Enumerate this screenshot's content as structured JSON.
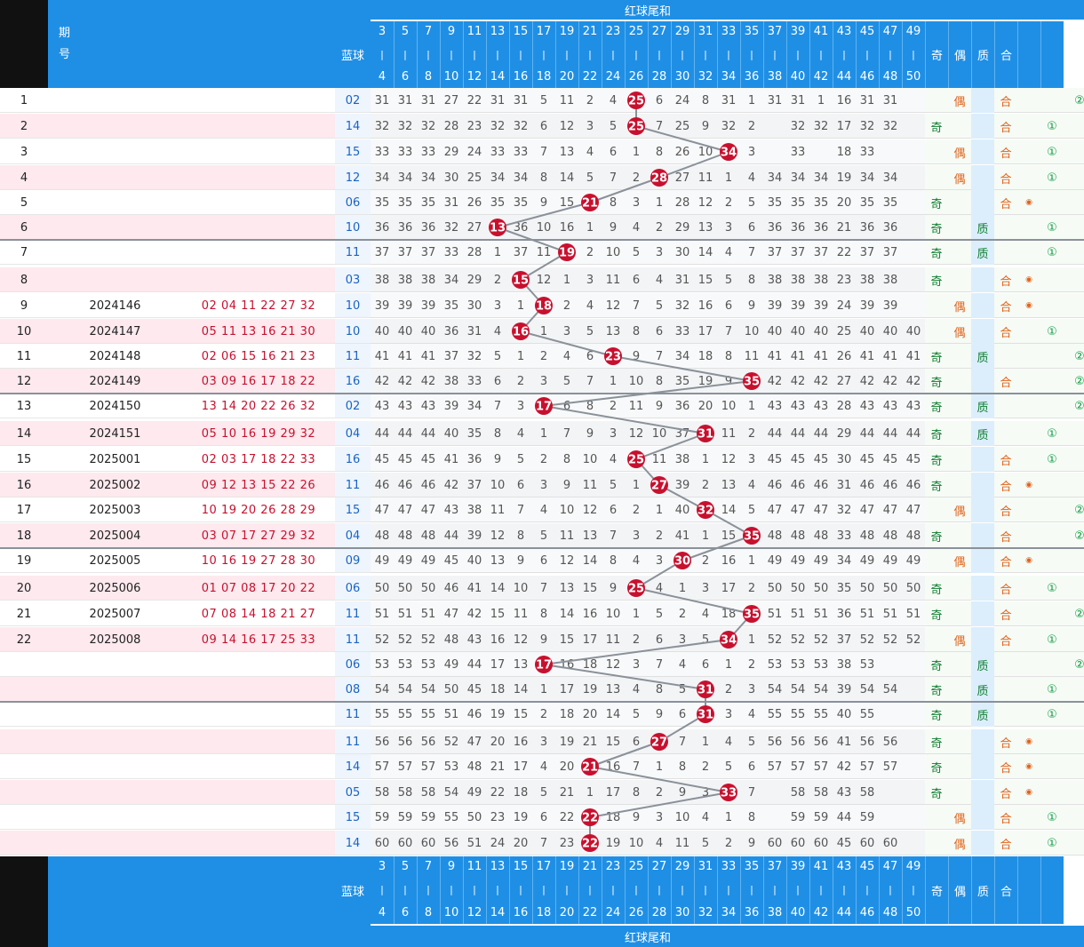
{
  "header": {
    "title": "红球尾和",
    "period_label": "期\n号",
    "blue_label": "蓝球",
    "col_pairs": [
      [
        "3",
        "4"
      ],
      [
        "5",
        "6"
      ],
      [
        "7",
        "8"
      ],
      [
        "9",
        "10"
      ],
      [
        "11",
        "12"
      ],
      [
        "13",
        "14"
      ],
      [
        "15",
        "16"
      ],
      [
        "17",
        "18"
      ],
      [
        "19",
        "20"
      ],
      [
        "21",
        "22"
      ],
      [
        "23",
        "24"
      ],
      [
        "25",
        "26"
      ],
      [
        "27",
        "28"
      ],
      [
        "29",
        "30"
      ],
      [
        "31",
        "32"
      ],
      [
        "33",
        "34"
      ],
      [
        "35",
        "36"
      ],
      [
        "37",
        "38"
      ],
      [
        "39",
        "40"
      ],
      [
        "41",
        "42"
      ],
      [
        "43",
        "44"
      ],
      [
        "45",
        "46"
      ],
      [
        "47",
        "48"
      ],
      [
        "49",
        "50"
      ]
    ],
    "attr_labels": [
      "奇",
      "偶",
      "质",
      "合",
      "",
      ""
    ]
  },
  "footer": {
    "title": "红球尾和",
    "blue_label": "蓝球",
    "col_pairs": [
      [
        "3",
        "4"
      ],
      [
        "5",
        "6"
      ],
      [
        "7",
        "8"
      ],
      [
        "9",
        "10"
      ],
      [
        "11",
        "12"
      ],
      [
        "13",
        "14"
      ],
      [
        "15",
        "16"
      ],
      [
        "17",
        "18"
      ],
      [
        "19",
        "20"
      ],
      [
        "21",
        "22"
      ],
      [
        "23",
        "24"
      ],
      [
        "25",
        "26"
      ],
      [
        "27",
        "28"
      ],
      [
        "29",
        "30"
      ],
      [
        "31",
        "32"
      ],
      [
        "33",
        "34"
      ],
      [
        "35",
        "36"
      ],
      [
        "37",
        "38"
      ],
      [
        "39",
        "40"
      ],
      [
        "41",
        "42"
      ],
      [
        "43",
        "44"
      ],
      [
        "45",
        "46"
      ],
      [
        "47",
        "48"
      ],
      [
        "49",
        "50"
      ]
    ],
    "attr_labels": [
      "奇",
      "偶",
      "质",
      "合",
      "",
      ""
    ]
  },
  "colors": {
    "header": "#1f8fe5",
    "hit_ball": "#c8102e",
    "line": "#8a9199",
    "odd": "#0e7d2e",
    "even": "#e0631a"
  },
  "rows": [
    {
      "idx": "1",
      "period": "",
      "reds": "",
      "blue": "02",
      "hit": 25,
      "odd": "",
      "even": "偶",
      "prime": "",
      "comp": "合",
      "mark": "②",
      "dot": false
    },
    {
      "idx": "2",
      "period": "",
      "reds": "",
      "blue": "14",
      "hit": 25,
      "odd": "奇",
      "even": "",
      "prime": "",
      "comp": "合",
      "mark": "①",
      "dot": false
    },
    {
      "idx": "3",
      "period": "",
      "reds": "",
      "blue": "15",
      "hit": 34,
      "odd": "",
      "even": "偶",
      "prime": "",
      "comp": "合",
      "mark": "①",
      "dot": false
    },
    {
      "idx": "4",
      "period": "",
      "reds": "",
      "blue": "12",
      "hit": 28,
      "odd": "",
      "even": "偶",
      "prime": "",
      "comp": "合",
      "mark": "①",
      "dot": false
    },
    {
      "idx": "5",
      "period": "",
      "reds": "",
      "blue": "06",
      "hit": 21,
      "odd": "奇",
      "even": "",
      "prime": "",
      "comp": "合",
      "mark": "",
      "dot": true
    },
    {
      "idx": "6",
      "period": "",
      "reds": "",
      "blue": "10",
      "hit": 13,
      "odd": "奇",
      "even": "",
      "prime": "质",
      "comp": "",
      "mark": "①",
      "dot": false
    },
    {
      "idx": "7",
      "period": "",
      "reds": "",
      "blue": "11",
      "hit": 19,
      "odd": "奇",
      "even": "",
      "prime": "质",
      "comp": "",
      "mark": "①",
      "dot": false
    },
    {
      "idx": "8",
      "period": "",
      "reds": "",
      "blue": "03",
      "hit": 15,
      "odd": "奇",
      "even": "",
      "prime": "",
      "comp": "合",
      "mark": "",
      "dot": true
    },
    {
      "idx": "9",
      "period": "2024146",
      "reds": "02 04 11 22 27 32",
      "blue": "10",
      "hit": 18,
      "odd": "",
      "even": "偶",
      "prime": "",
      "comp": "合",
      "mark": "",
      "dot": true
    },
    {
      "idx": "10",
      "period": "2024147",
      "reds": "05 11 13 16 21 30",
      "blue": "10",
      "hit": 16,
      "odd": "",
      "even": "偶",
      "prime": "",
      "comp": "合",
      "mark": "①",
      "dot": false
    },
    {
      "idx": "11",
      "period": "2024148",
      "reds": "02 06 15 16 21 23",
      "blue": "11",
      "hit": 23,
      "odd": "奇",
      "even": "",
      "prime": "质",
      "comp": "",
      "mark": "②",
      "dot": false
    },
    {
      "idx": "12",
      "period": "2024149",
      "reds": "03 09 16 17 18 22",
      "blue": "16",
      "hit": 35,
      "odd": "奇",
      "even": "",
      "prime": "",
      "comp": "合",
      "mark": "②",
      "dot": false
    },
    {
      "idx": "13",
      "period": "2024150",
      "reds": "13 14 20 22 26 32",
      "blue": "02",
      "hit": 17,
      "odd": "奇",
      "even": "",
      "prime": "质",
      "comp": "",
      "mark": "②",
      "dot": false
    },
    {
      "idx": "14",
      "period": "2024151",
      "reds": "05 10 16 19 29 32",
      "blue": "04",
      "hit": 31,
      "odd": "奇",
      "even": "",
      "prime": "质",
      "comp": "",
      "mark": "①",
      "dot": false
    },
    {
      "idx": "15",
      "period": "2025001",
      "reds": "02 03 17 18 22 33",
      "blue": "16",
      "hit": 25,
      "odd": "奇",
      "even": "",
      "prime": "",
      "comp": "合",
      "mark": "①",
      "dot": false
    },
    {
      "idx": "16",
      "period": "2025002",
      "reds": "09 12 13 15 22 26",
      "blue": "11",
      "hit": 27,
      "odd": "奇",
      "even": "",
      "prime": "",
      "comp": "合",
      "mark": "",
      "dot": true
    },
    {
      "idx": "17",
      "period": "2025003",
      "reds": "10 19 20 26 28 29",
      "blue": "15",
      "hit": 32,
      "odd": "",
      "even": "偶",
      "prime": "",
      "comp": "合",
      "mark": "②",
      "dot": false
    },
    {
      "idx": "18",
      "period": "2025004",
      "reds": "03 07 17 27 29 32",
      "blue": "04",
      "hit": 35,
      "odd": "奇",
      "even": "",
      "prime": "",
      "comp": "合",
      "mark": "②",
      "dot": false
    },
    {
      "idx": "19",
      "period": "2025005",
      "reds": "10 16 19 27 28 30",
      "blue": "09",
      "hit": 30,
      "odd": "",
      "even": "偶",
      "prime": "",
      "comp": "合",
      "mark": "",
      "dot": true
    },
    {
      "idx": "20",
      "period": "2025006",
      "reds": "01 07 08 17 20 22",
      "blue": "06",
      "hit": 25,
      "odd": "奇",
      "even": "",
      "prime": "",
      "comp": "合",
      "mark": "①",
      "dot": false
    },
    {
      "idx": "21",
      "period": "2025007",
      "reds": "07 08 14 18 21 27",
      "blue": "11",
      "hit": 35,
      "odd": "奇",
      "even": "",
      "prime": "",
      "comp": "合",
      "mark": "②",
      "dot": false
    },
    {
      "idx": "22",
      "period": "2025008",
      "reds": "09 14 16 17 25 33",
      "blue": "11",
      "hit": 34,
      "odd": "",
      "even": "偶",
      "prime": "",
      "comp": "合",
      "mark": "①",
      "dot": false
    },
    {
      "idx": "",
      "period": "",
      "reds": "",
      "blue": "06",
      "hit": 17,
      "odd": "奇",
      "even": "",
      "prime": "质",
      "comp": "",
      "mark": "②",
      "dot": false
    },
    {
      "idx": "",
      "period": "",
      "reds": "",
      "blue": "08",
      "hit": 31,
      "odd": "奇",
      "even": "",
      "prime": "质",
      "comp": "",
      "mark": "①",
      "dot": false
    },
    {
      "idx": "",
      "period": "",
      "reds": "",
      "blue": "11",
      "hit": 31,
      "odd": "奇",
      "even": "",
      "prime": "质",
      "comp": "",
      "mark": "①",
      "dot": false
    },
    {
      "idx": "",
      "period": "",
      "reds": "",
      "blue": "11",
      "hit": 27,
      "odd": "奇",
      "even": "",
      "prime": "",
      "comp": "合",
      "mark": "",
      "dot": true
    },
    {
      "idx": "",
      "period": "",
      "reds": "",
      "blue": "14",
      "hit": 21,
      "odd": "奇",
      "even": "",
      "prime": "",
      "comp": "合",
      "mark": "",
      "dot": true
    },
    {
      "idx": "",
      "period": "",
      "reds": "",
      "blue": "05",
      "hit": 33,
      "odd": "奇",
      "even": "",
      "prime": "",
      "comp": "合",
      "mark": "",
      "dot": true
    },
    {
      "idx": "",
      "period": "",
      "reds": "",
      "blue": "15",
      "hit": 22,
      "odd": "",
      "even": "偶",
      "prime": "",
      "comp": "合",
      "mark": "①",
      "dot": false
    },
    {
      "idx": "",
      "period": "",
      "reds": "",
      "blue": "14",
      "hit": 22,
      "odd": "",
      "even": "偶",
      "prime": "",
      "comp": "合",
      "mark": "①",
      "dot": false
    }
  ],
  "row_cells": [
    [
      31,
      31,
      31,
      27,
      22,
      31,
      31,
      5,
      11,
      2,
      4,
      26,
      6,
      24,
      8,
      31,
      1,
      31,
      31,
      1,
      16,
      31,
      31,
      ""
    ],
    [
      32,
      32,
      32,
      28,
      23,
      32,
      32,
      6,
      12,
      3,
      5,
      25,
      7,
      25,
      9,
      32,
      2,
      "",
      32,
      32,
      17,
      32,
      32,
      ""
    ],
    [
      33,
      33,
      33,
      29,
      24,
      33,
      33,
      7,
      13,
      4,
      6,
      1,
      8,
      26,
      10,
      34,
      3,
      "",
      33,
      "",
      18,
      33,
      "",
      ""
    ],
    [
      34,
      34,
      34,
      30,
      25,
      34,
      34,
      8,
      14,
      5,
      7,
      2,
      28,
      27,
      11,
      1,
      4,
      34,
      34,
      34,
      19,
      34,
      34,
      ""
    ],
    [
      35,
      35,
      35,
      31,
      26,
      35,
      35,
      9,
      15,
      21,
      8,
      3,
      1,
      28,
      12,
      2,
      5,
      35,
      35,
      35,
      20,
      35,
      35,
      ""
    ],
    [
      36,
      36,
      36,
      32,
      27,
      13,
      36,
      10,
      16,
      1,
      9,
      4,
      2,
      29,
      13,
      3,
      6,
      36,
      36,
      36,
      21,
      36,
      36,
      ""
    ],
    [
      37,
      37,
      37,
      33,
      28,
      1,
      37,
      11,
      19,
      2,
      10,
      5,
      3,
      30,
      14,
      4,
      7,
      37,
      37,
      37,
      22,
      37,
      37,
      ""
    ],
    [
      38,
      38,
      38,
      34,
      29,
      2,
      15,
      12,
      1,
      3,
      11,
      6,
      4,
      31,
      15,
      5,
      8,
      38,
      38,
      38,
      23,
      38,
      38,
      ""
    ],
    [
      39,
      39,
      39,
      35,
      30,
      3,
      1,
      18,
      2,
      4,
      12,
      7,
      5,
      32,
      16,
      6,
      9,
      39,
      39,
      39,
      24,
      39,
      39,
      ""
    ],
    [
      40,
      40,
      40,
      36,
      31,
      4,
      16,
      1,
      3,
      5,
      13,
      8,
      6,
      33,
      17,
      7,
      10,
      40,
      40,
      40,
      25,
      40,
      40,
      40
    ],
    [
      41,
      41,
      41,
      37,
      32,
      5,
      1,
      2,
      4,
      6,
      23,
      9,
      7,
      34,
      18,
      8,
      11,
      41,
      41,
      41,
      26,
      41,
      41,
      41
    ],
    [
      42,
      42,
      42,
      38,
      33,
      6,
      2,
      3,
      5,
      7,
      1,
      10,
      8,
      35,
      19,
      9,
      35,
      42,
      42,
      42,
      27,
      42,
      42,
      42
    ],
    [
      43,
      43,
      43,
      39,
      34,
      7,
      3,
      17,
      6,
      8,
      2,
      11,
      9,
      36,
      20,
      10,
      1,
      43,
      43,
      43,
      28,
      43,
      43,
      43
    ],
    [
      44,
      44,
      44,
      40,
      35,
      8,
      4,
      1,
      7,
      9,
      3,
      12,
      10,
      37,
      31,
      11,
      2,
      44,
      44,
      44,
      29,
      44,
      44,
      44
    ],
    [
      45,
      45,
      45,
      41,
      36,
      9,
      5,
      2,
      8,
      10,
      4,
      25,
      11,
      38,
      1,
      12,
      3,
      45,
      45,
      45,
      30,
      45,
      45,
      45
    ],
    [
      46,
      46,
      46,
      42,
      37,
      10,
      6,
      3,
      9,
      11,
      5,
      1,
      27,
      39,
      2,
      13,
      4,
      46,
      46,
      46,
      31,
      46,
      46,
      46
    ],
    [
      47,
      47,
      47,
      43,
      38,
      11,
      7,
      4,
      10,
      12,
      6,
      2,
      1,
      40,
      32,
      14,
      5,
      47,
      47,
      47,
      32,
      47,
      47,
      47
    ],
    [
      48,
      48,
      48,
      44,
      39,
      12,
      8,
      5,
      11,
      13,
      7,
      3,
      2,
      41,
      1,
      15,
      35,
      48,
      48,
      48,
      33,
      48,
      48,
      48
    ],
    [
      49,
      49,
      49,
      45,
      40,
      13,
      9,
      6,
      12,
      14,
      8,
      4,
      3,
      30,
      2,
      16,
      1,
      49,
      49,
      49,
      34,
      49,
      49,
      49
    ],
    [
      50,
      50,
      50,
      46,
      41,
      14,
      10,
      7,
      13,
      15,
      9,
      25,
      4,
      1,
      3,
      17,
      2,
      50,
      50,
      50,
      35,
      50,
      50,
      50
    ],
    [
      51,
      51,
      51,
      47,
      42,
      15,
      11,
      8,
      14,
      16,
      10,
      1,
      5,
      2,
      4,
      18,
      35,
      51,
      51,
      51,
      36,
      51,
      51,
      51
    ],
    [
      52,
      52,
      52,
      48,
      43,
      16,
      12,
      9,
      15,
      17,
      11,
      2,
      6,
      3,
      5,
      34,
      1,
      52,
      52,
      52,
      37,
      52,
      52,
      52
    ],
    [
      53,
      53,
      53,
      49,
      44,
      17,
      13,
      17,
      16,
      18,
      12,
      3,
      7,
      4,
      6,
      1,
      2,
      53,
      53,
      53,
      38,
      53,
      "",
      ""
    ],
    [
      54,
      54,
      54,
      50,
      45,
      18,
      14,
      1,
      17,
      19,
      13,
      4,
      8,
      5,
      31,
      2,
      3,
      54,
      54,
      54,
      39,
      54,
      54,
      ""
    ],
    [
      55,
      55,
      55,
      51,
      46,
      19,
      15,
      2,
      18,
      20,
      14,
      5,
      9,
      6,
      31,
      3,
      4,
      55,
      55,
      55,
      40,
      55,
      "",
      ""
    ],
    [
      56,
      56,
      56,
      52,
      47,
      20,
      16,
      3,
      19,
      21,
      15,
      6,
      27,
      7,
      1,
      4,
      5,
      56,
      56,
      56,
      41,
      56,
      56,
      ""
    ],
    [
      57,
      57,
      57,
      53,
      48,
      21,
      17,
      4,
      20,
      21,
      16,
      7,
      1,
      8,
      2,
      5,
      6,
      57,
      57,
      57,
      42,
      57,
      57,
      ""
    ],
    [
      58,
      58,
      58,
      54,
      49,
      22,
      18,
      5,
      21,
      1,
      17,
      8,
      2,
      9,
      3,
      33,
      7,
      "",
      58,
      58,
      43,
      58,
      "",
      ""
    ],
    [
      59,
      59,
      59,
      55,
      50,
      23,
      19,
      6,
      22,
      22,
      18,
      9,
      3,
      10,
      4,
      1,
      8,
      "",
      59,
      59,
      44,
      59,
      "",
      ""
    ],
    [
      60,
      60,
      60,
      56,
      51,
      24,
      20,
      7,
      23,
      22,
      19,
      10,
      4,
      11,
      5,
      2,
      9,
      60,
      60,
      60,
      45,
      60,
      60,
      ""
    ]
  ]
}
